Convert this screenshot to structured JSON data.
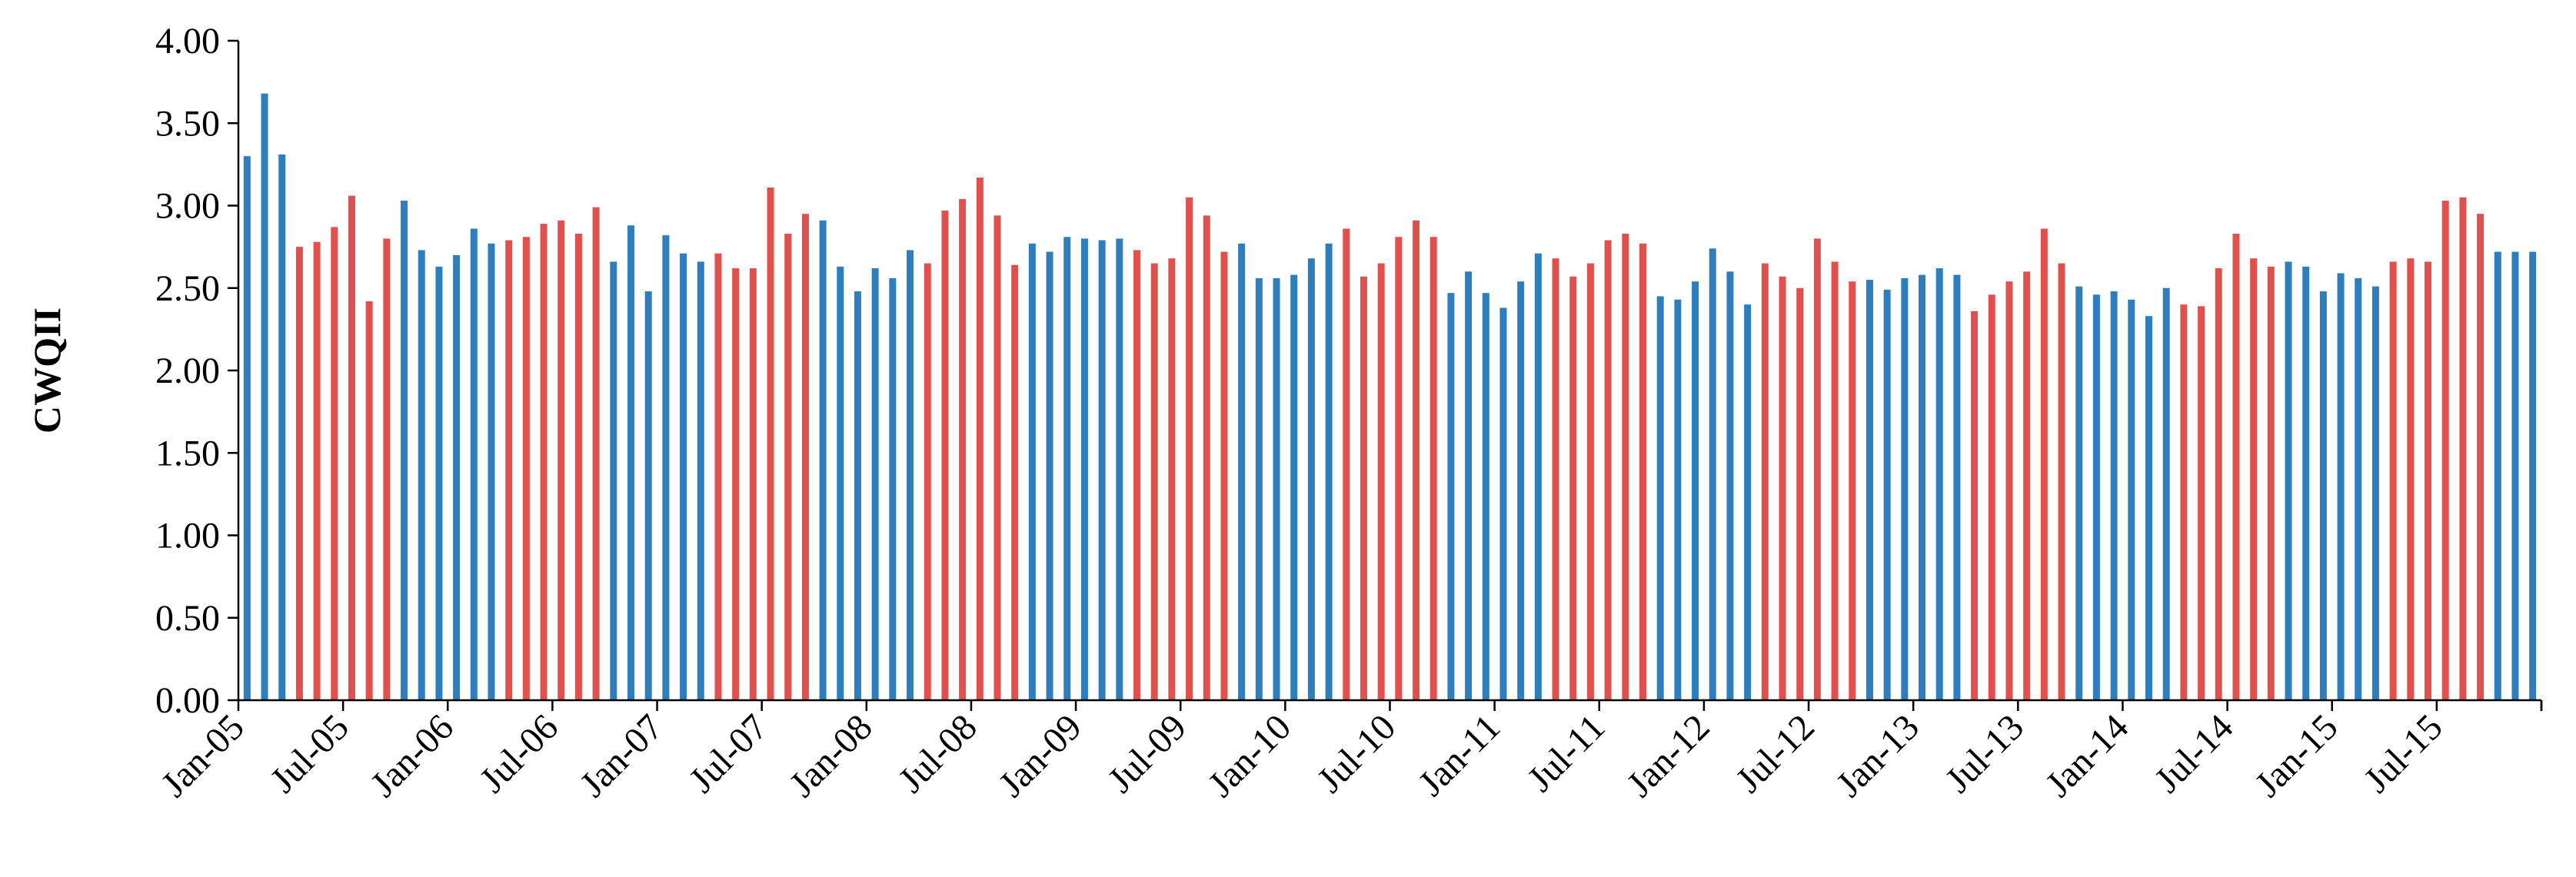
{
  "chart_data": {
    "type": "bar",
    "ylabel": "CWQII",
    "ylim": [
      0,
      4
    ],
    "yticks": [
      "0.00",
      "0.50",
      "1.00",
      "1.50",
      "2.00",
      "2.50",
      "3.00",
      "3.50",
      "4.00"
    ],
    "xtick_labels": [
      "Jan-05",
      "Jul-05",
      "Jan-06",
      "Jul-06",
      "Jan-07",
      "Jul-07",
      "Jan-08",
      "Jul-08",
      "Jan-09",
      "Jul-09",
      "Jan-10",
      "Jul-10",
      "Jan-11",
      "Jul-11",
      "Jan-12",
      "Jul-12",
      "Jan-13",
      "Jul-13",
      "Jan-14",
      "Jul-14",
      "Jan-15",
      "Jul-15"
    ],
    "grid": false,
    "legend": "none",
    "colors": {
      "blue": "#2e7ebd",
      "red": "#e0514d"
    },
    "x_start": "2005-01",
    "values": [
      3.3,
      3.68,
      3.31,
      2.75,
      2.78,
      2.87,
      3.06,
      2.42,
      2.8,
      3.03,
      2.73,
      2.63,
      2.7,
      2.86,
      2.77,
      2.79,
      2.81,
      2.89,
      2.91,
      2.83,
      2.99,
      2.66,
      2.88,
      2.48,
      2.82,
      2.71,
      2.66,
      2.71,
      2.62,
      2.62,
      3.11,
      2.83,
      2.95,
      2.91,
      2.63,
      2.48,
      2.62,
      2.56,
      2.73,
      2.65,
      2.97,
      3.04,
      3.17,
      2.94,
      2.64,
      2.77,
      2.72,
      2.81,
      2.8,
      2.79,
      2.8,
      2.73,
      2.65,
      2.68,
      3.05,
      2.94,
      2.72,
      2.77,
      2.56,
      2.56,
      2.58,
      2.68,
      2.77,
      2.86,
      2.57,
      2.65,
      2.81,
      2.91,
      2.81,
      2.47,
      2.6,
      2.47,
      2.38,
      2.54,
      2.71,
      2.68,
      2.57,
      2.65,
      2.79,
      2.83,
      2.77,
      2.45,
      2.43,
      2.54,
      2.74,
      2.6,
      2.4,
      2.65,
      2.57,
      2.5,
      2.8,
      2.66,
      2.54,
      2.55,
      2.49,
      2.56,
      2.58,
      2.62,
      2.58,
      2.36,
      2.46,
      2.54,
      2.6,
      2.86,
      2.65,
      2.51,
      2.46,
      2.48,
      2.43,
      2.33,
      2.5,
      2.4,
      2.39,
      2.62,
      2.83,
      2.68,
      2.63,
      2.66,
      2.63,
      2.48,
      2.59,
      2.56,
      2.51,
      2.66,
      2.68,
      2.66,
      3.03,
      3.05,
      2.95,
      2.72,
      2.72,
      2.72
    ],
    "series_color": [
      "blue",
      "blue",
      "blue",
      "red",
      "red",
      "red",
      "red",
      "red",
      "red",
      "blue",
      "blue",
      "blue",
      "blue",
      "blue",
      "blue",
      "red",
      "red",
      "red",
      "red",
      "red",
      "red",
      "blue",
      "blue",
      "blue",
      "blue",
      "blue",
      "blue",
      "red",
      "red",
      "red",
      "red",
      "red",
      "red",
      "blue",
      "blue",
      "blue",
      "blue",
      "blue",
      "blue",
      "red",
      "red",
      "red",
      "red",
      "red",
      "red",
      "blue",
      "blue",
      "blue",
      "blue",
      "blue",
      "blue",
      "red",
      "red",
      "red",
      "red",
      "red",
      "red",
      "blue",
      "blue",
      "blue",
      "blue",
      "blue",
      "blue",
      "red",
      "red",
      "red",
      "red",
      "red",
      "red",
      "blue",
      "blue",
      "blue",
      "blue",
      "blue",
      "blue",
      "red",
      "red",
      "red",
      "red",
      "red",
      "red",
      "blue",
      "blue",
      "blue",
      "blue",
      "blue",
      "blue",
      "red",
      "red",
      "red",
      "red",
      "red",
      "red",
      "blue",
      "blue",
      "blue",
      "blue",
      "blue",
      "blue",
      "red",
      "red",
      "red",
      "red",
      "red",
      "red",
      "blue",
      "blue",
      "blue",
      "blue",
      "blue",
      "blue",
      "red",
      "red",
      "red",
      "red",
      "red",
      "red",
      "blue",
      "blue",
      "blue",
      "blue",
      "blue",
      "blue",
      "red",
      "red",
      "red",
      "red",
      "red",
      "red",
      "blue",
      "blue",
      "blue"
    ]
  }
}
